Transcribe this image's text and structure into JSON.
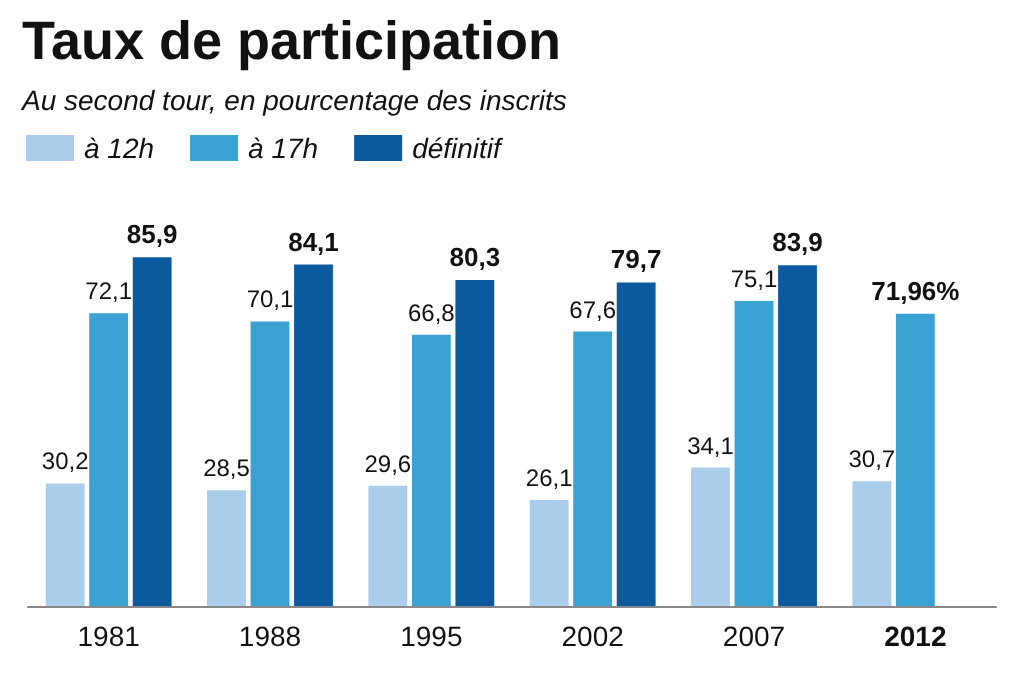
{
  "chart_data": {
    "type": "bar",
    "title": "Taux de participation",
    "subtitle": "Au second tour, en pourcentage des inscrits",
    "categories": [
      "1981",
      "1988",
      "1995",
      "2002",
      "2007",
      "2012"
    ],
    "series": [
      {
        "name": "à 12h",
        "color": "#a9cdea",
        "values": [
          30.2,
          28.5,
          29.6,
          26.1,
          34.1,
          30.7
        ],
        "value_labels": [
          "30,2",
          "28,5",
          "29,6",
          "26,1",
          "34,1",
          "30,7"
        ]
      },
      {
        "name": "à 17h",
        "color": "#3aa2d2",
        "values": [
          72.1,
          70.1,
          66.8,
          67.6,
          75.1,
          71.96
        ],
        "value_labels": [
          "72,1",
          "70,1",
          "66,8",
          "67,6",
          "75,1",
          "71,96%"
        ]
      },
      {
        "name": "définitif",
        "color": "#0b5a9e",
        "values": [
          85.9,
          84.1,
          80.3,
          79.7,
          83.9,
          null
        ],
        "value_labels": [
          "85,9",
          "84,1",
          "80,3",
          "79,7",
          "83,9",
          null
        ]
      }
    ],
    "legend": "top left"
  }
}
